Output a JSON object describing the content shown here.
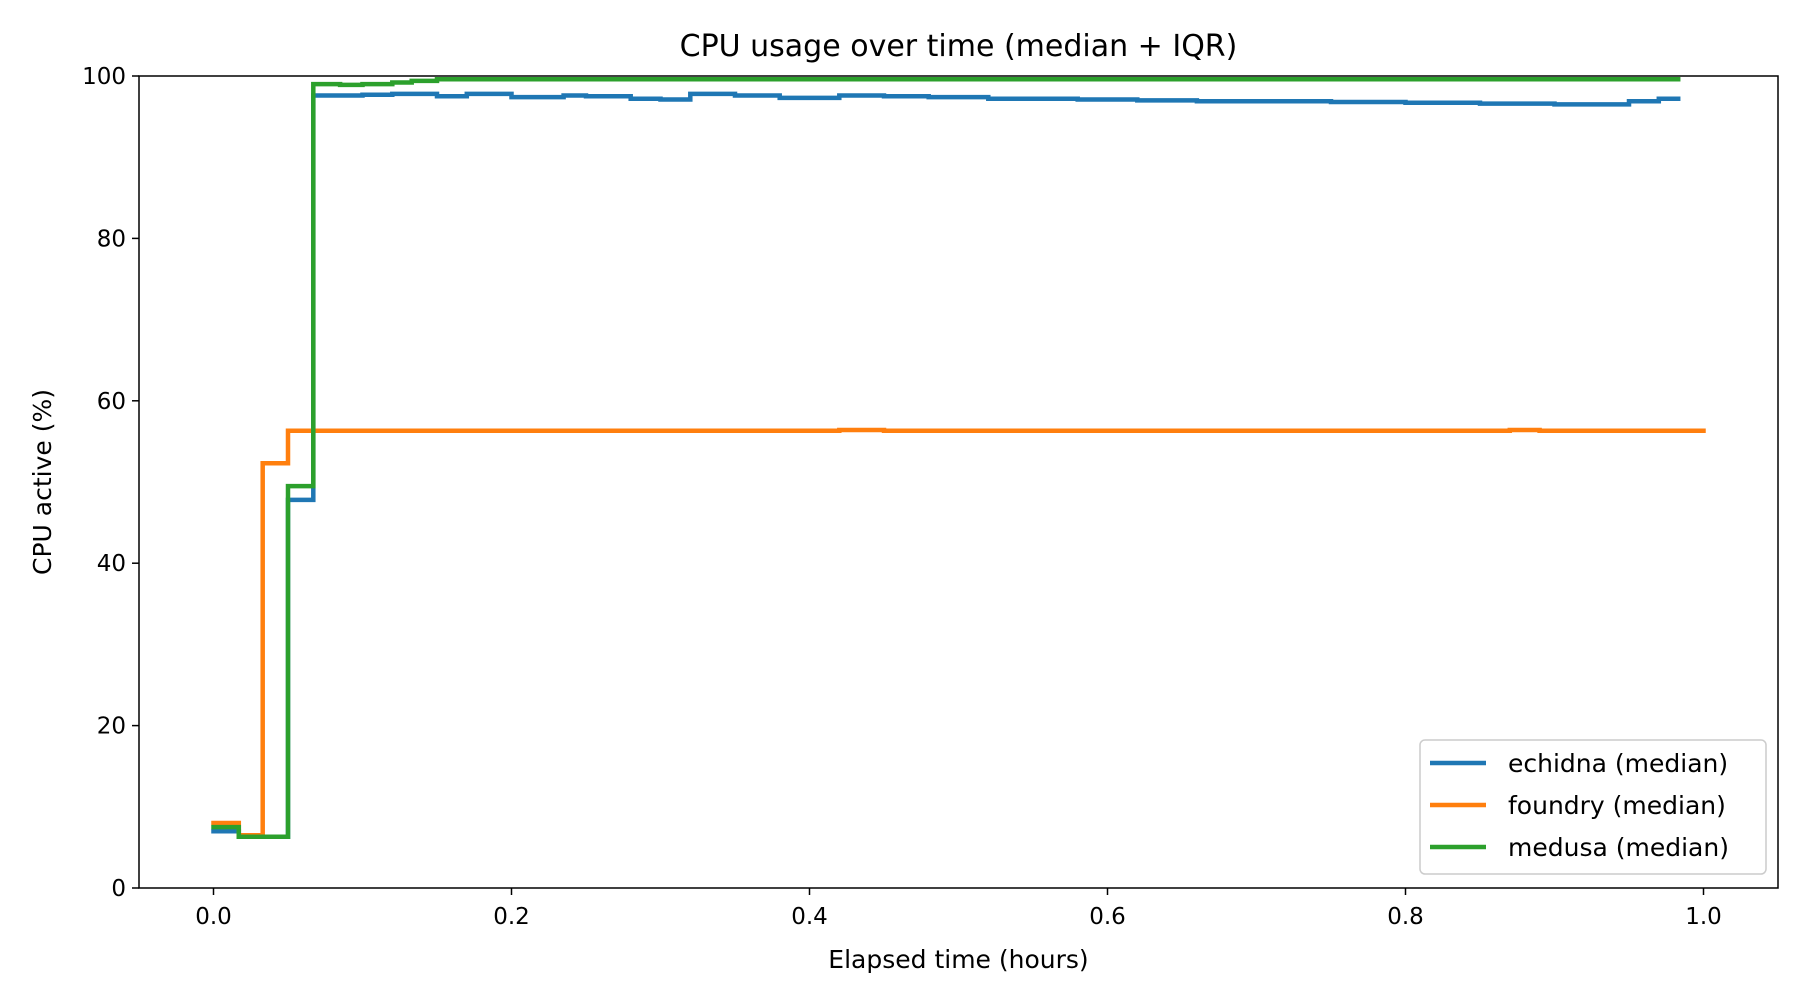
{
  "chart_data": {
    "type": "line",
    "title": "CPU usage over time (median + IQR)",
    "xlabel": "Elapsed time (hours)",
    "ylabel": "CPU active (%)",
    "xlim": [
      -0.05,
      1.05
    ],
    "ylim": [
      0,
      100
    ],
    "x_ticks": [
      0.0,
      0.2,
      0.4,
      0.6,
      0.8,
      1.0
    ],
    "x_tick_labels": [
      "0.0",
      "0.2",
      "0.4",
      "0.6",
      "0.8",
      "1.0"
    ],
    "y_ticks": [
      0,
      20,
      40,
      60,
      80,
      100
    ],
    "y_tick_labels": [
      "0",
      "20",
      "40",
      "60",
      "80",
      "100"
    ],
    "grid": false,
    "legend_position": "bottom-right",
    "step": true,
    "series": [
      {
        "name": "echidna (median)",
        "color": "#1f77b4",
        "x": [
          0.0,
          0.017,
          0.05,
          0.067,
          0.1,
          0.12,
          0.15,
          0.17,
          0.2,
          0.235,
          0.25,
          0.28,
          0.3,
          0.32,
          0.35,
          0.38,
          0.42,
          0.45,
          0.48,
          0.52,
          0.58,
          0.62,
          0.66,
          0.7,
          0.75,
          0.8,
          0.85,
          0.9,
          0.95,
          0.97,
          0.983
        ],
        "y": [
          7.0,
          6.3,
          47.8,
          97.6,
          97.7,
          97.8,
          97.5,
          97.8,
          97.4,
          97.6,
          97.5,
          97.2,
          97.1,
          97.8,
          97.6,
          97.3,
          97.6,
          97.5,
          97.4,
          97.2,
          97.1,
          97.0,
          96.9,
          96.9,
          96.8,
          96.7,
          96.6,
          96.5,
          96.9,
          97.2,
          97.2
        ]
      },
      {
        "name": "foundry (median)",
        "color": "#ff7f0e",
        "x": [
          0.0,
          0.017,
          0.033,
          0.05,
          0.067,
          0.42,
          0.45,
          0.87,
          0.89,
          1.0
        ],
        "y": [
          8.0,
          6.5,
          52.3,
          56.3,
          56.3,
          56.4,
          56.3,
          56.4,
          56.3,
          56.3
        ]
      },
      {
        "name": "medusa (median)",
        "color": "#2ca02c",
        "x": [
          0.0,
          0.017,
          0.05,
          0.067,
          0.085,
          0.1,
          0.12,
          0.133,
          0.15,
          0.983
        ],
        "y": [
          7.5,
          6.3,
          49.5,
          99.0,
          98.9,
          99.0,
          99.2,
          99.4,
          99.6,
          99.6
        ]
      }
    ]
  }
}
